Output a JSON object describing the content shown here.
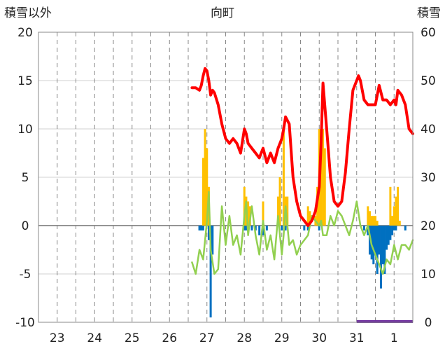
{
  "chart_data": {
    "type": "line",
    "title": "向町",
    "left_axis_label": "積雪以外",
    "right_axis_label": "積雪",
    "ylim_left": [
      -10,
      20
    ],
    "yticks_left": [
      "-10",
      "-5",
      "0",
      "5",
      "10",
      "15",
      "20"
    ],
    "ylim_right": [
      0,
      60
    ],
    "yticks_right": [
      "0",
      "10",
      "20",
      "30",
      "40",
      "50",
      "60"
    ],
    "xlim": [
      22.5,
      1.5
    ],
    "days": [
      "23",
      "24",
      "25",
      "26",
      "27",
      "28",
      "29",
      "30",
      "31",
      "1"
    ],
    "grid": true,
    "series": [
      {
        "axis": "right",
        "color": "#ff0000",
        "x": [
          26.6,
          26.7,
          26.8,
          26.85,
          26.9,
          26.95,
          27.0,
          27.05,
          27.1,
          27.15,
          27.2,
          27.3,
          27.4,
          27.5,
          27.6,
          27.7,
          27.8,
          27.9,
          28.0,
          28.05,
          28.1,
          28.2,
          28.3,
          28.4,
          28.5,
          28.6,
          28.7,
          28.8,
          28.9,
          29.0,
          29.05,
          29.1,
          29.2,
          29.3,
          29.4,
          29.5,
          29.6,
          29.7,
          29.8,
          29.9,
          30.0,
          30.05,
          30.1,
          30.2,
          30.3,
          30.4,
          30.5,
          30.6,
          30.7,
          30.8,
          30.9,
          31.0,
          31.05,
          31.1,
          31.2,
          31.3,
          31.4,
          31.5,
          31.6,
          31.7,
          31.8,
          31.9,
          32.0,
          32.05,
          32.1,
          32.2,
          32.3,
          32.4,
          32.5
        ],
        "values": [
          48.5,
          48.5,
          48,
          49,
          51,
          52.5,
          52,
          50,
          47,
          48,
          47.5,
          45,
          41,
          38,
          37,
          38,
          37,
          35,
          40,
          39,
          37,
          36,
          35,
          34,
          36,
          33,
          35,
          33,
          36,
          38,
          40,
          42.5,
          41,
          30,
          25,
          22,
          21,
          20,
          21,
          23,
          28,
          37,
          49.5,
          40,
          30,
          25,
          24,
          25,
          31,
          40,
          48,
          50,
          51,
          50,
          46,
          45,
          45,
          45,
          49,
          46,
          46,
          45,
          46,
          45,
          48,
          47,
          45,
          40,
          39
        ]
      },
      {
        "axis": "left",
        "color": "#92d050",
        "x": [
          26.6,
          26.7,
          26.8,
          26.9,
          27.0,
          27.05,
          27.1,
          27.2,
          27.3,
          27.4,
          27.5,
          27.6,
          27.7,
          27.8,
          27.9,
          28.0,
          28.05,
          28.1,
          28.2,
          28.3,
          28.4,
          28.5,
          28.6,
          28.7,
          28.8,
          28.9,
          29.0,
          29.05,
          29.1,
          29.2,
          29.3,
          29.4,
          29.5,
          29.6,
          29.7,
          29.8,
          29.9,
          30.0,
          30.05,
          30.1,
          30.2,
          30.3,
          30.4,
          30.5,
          30.6,
          30.7,
          30.8,
          30.9,
          31.0,
          31.1,
          31.2,
          31.3,
          31.4,
          31.5,
          31.6,
          31.7,
          31.8,
          31.9,
          32.0,
          32.1,
          32.2,
          32.3,
          32.4,
          32.5
        ],
        "values": [
          -3.8,
          -5,
          -2.5,
          -3.5,
          0.5,
          3.5,
          -2.5,
          -5,
          -4.5,
          2,
          -2,
          1,
          -2,
          -1,
          -3,
          1,
          2.5,
          -1,
          2,
          -1,
          -3,
          0.5,
          -2.5,
          -1,
          -3.5,
          1,
          -3,
          -1,
          2,
          -2,
          -1.5,
          -3,
          -2,
          -1.5,
          -1,
          1,
          0.5,
          0,
          0.5,
          -1,
          -1,
          1,
          0,
          1.5,
          1,
          0,
          -1,
          0.5,
          2.5,
          0,
          -1,
          0,
          -2,
          -3,
          -4,
          -5,
          -3.5,
          -4,
          -2,
          -3.5,
          -2,
          -2,
          -2.5,
          -1.5
        ]
      }
    ],
    "bars_positive": {
      "axis": "left",
      "color": "#ffc000",
      "x": [
        26.9,
        26.95,
        27.0,
        27.05,
        28.0,
        28.05,
        28.1,
        28.15,
        28.5,
        28.9,
        28.95,
        29.05,
        29.1,
        29.15,
        29.7,
        29.75,
        29.9,
        29.95,
        30.0,
        30.05,
        30.1,
        30.15,
        31.3,
        31.35,
        31.4,
        31.45,
        31.5,
        31.55,
        31.9,
        31.95,
        32.0,
        32.05,
        32.1,
        32.15
      ],
      "values": [
        7,
        10,
        8,
        4,
        4,
        3,
        2.5,
        2,
        2.5,
        3,
        5,
        10,
        3,
        3,
        2,
        1.5,
        1,
        4,
        10,
        10,
        10,
        8,
        2,
        1.5,
        1,
        1,
        1,
        0.5,
        4,
        1,
        2,
        3,
        4,
        0.5
      ]
    },
    "bars_negative": {
      "axis": "left",
      "color": "#0070c0",
      "x": [
        26.8,
        26.85,
        26.9,
        27.05,
        27.1,
        27.15,
        28.0,
        28.05,
        28.2,
        28.3,
        28.4,
        28.5,
        28.6,
        29.0,
        29.1,
        29.6,
        29.7,
        30.0,
        31.2,
        31.3,
        31.35,
        31.4,
        31.45,
        31.5,
        31.55,
        31.6,
        31.65,
        31.7,
        31.75,
        31.8,
        31.85,
        31.9,
        31.95,
        32.0,
        32.05,
        32.3
      ],
      "values": [
        -0.5,
        -0.5,
        -0.5,
        -1.5,
        -9.5,
        -3,
        -0.5,
        -0.5,
        -0.5,
        -0.5,
        -1,
        -1,
        -0.5,
        -0.5,
        -0.5,
        -0.5,
        -0.5,
        -0.5,
        -0.5,
        -1,
        -3,
        -3.5,
        -4,
        -3,
        -5,
        -3,
        -6.5,
        -4,
        -5,
        -2.5,
        -2,
        -1.5,
        -1,
        -0.5,
        -0.5,
        -0.5
      ]
    },
    "range_band": {
      "color": "#7030a0",
      "x_start": 31.0,
      "x_end": 32.5,
      "y": -10
    }
  }
}
